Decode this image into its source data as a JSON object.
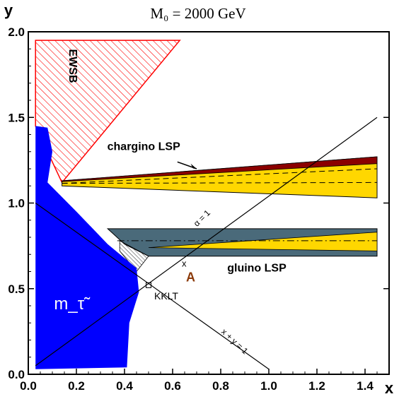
{
  "chart_data": {
    "type": "area",
    "title": "M₀ = 2000 GeV",
    "xlabel": "x",
    "ylabel": "y",
    "xlim": [
      0.0,
      1.5
    ],
    "ylim": [
      0.0,
      2.0
    ],
    "xticks": [
      "0.0",
      "0.2",
      "0.4",
      "0.6",
      "0.8",
      "1.0",
      "1.2",
      "1.4"
    ],
    "yticks": [
      "0.0",
      "0.5",
      "1.0",
      "1.5",
      "2.0"
    ],
    "grid": false,
    "colors": {
      "stau": "#0000ff",
      "ewsb": "#ff0000",
      "chargino_dark": "#8b0000",
      "yellow": "#ffd700",
      "gluino_slate": "#4a6a7a"
    },
    "regions": [
      {
        "name": "EWSB",
        "label": "EWSB",
        "polygon": [
          [
            0.03,
            1.95
          ],
          [
            0.63,
            1.95
          ],
          [
            0.14,
            1.12
          ],
          [
            0.03,
            1.45
          ]
        ]
      },
      {
        "name": "stau LSP",
        "label": "m_τ̃",
        "polygon": [
          [
            0.03,
            0.03
          ],
          [
            0.03,
            1.45
          ],
          [
            0.08,
            1.44
          ],
          [
            0.1,
            1.3
          ],
          [
            0.08,
            1.12
          ],
          [
            0.2,
            0.95
          ],
          [
            0.33,
            0.76
          ],
          [
            0.45,
            0.62
          ],
          [
            0.46,
            0.48
          ],
          [
            0.42,
            0.3
          ],
          [
            0.41,
            0.04
          ]
        ]
      },
      {
        "name": "chargino LSP",
        "label": "chargino LSP",
        "polygon": [
          [
            0.14,
            1.13
          ],
          [
            1.45,
            1.27
          ],
          [
            1.45,
            1.03
          ],
          [
            0.14,
            1.1
          ]
        ]
      },
      {
        "name": "gluino LSP",
        "label": "gluino LSP",
        "polygon": [
          [
            0.33,
            0.85
          ],
          [
            1.45,
            0.85
          ],
          [
            1.45,
            0.69
          ],
          [
            0.5,
            0.69
          ],
          [
            0.4,
            0.76
          ]
        ]
      }
    ],
    "lines": [
      {
        "name": "x + y = 1",
        "label": "x + y = 1",
        "x": [
          0.03,
          1.0
        ],
        "y": [
          1.0,
          0.03
        ]
      },
      {
        "name": "alpha = 1",
        "label": "α = 1",
        "x": [
          0.03,
          1.45
        ],
        "y": [
          0.05,
          1.5
        ]
      }
    ],
    "points": [
      {
        "name": "KKLT",
        "label": "KKLT",
        "x": 0.5,
        "y": 0.52
      },
      {
        "name": "A",
        "label": "A",
        "x": 0.65,
        "y": 0.65
      }
    ]
  }
}
